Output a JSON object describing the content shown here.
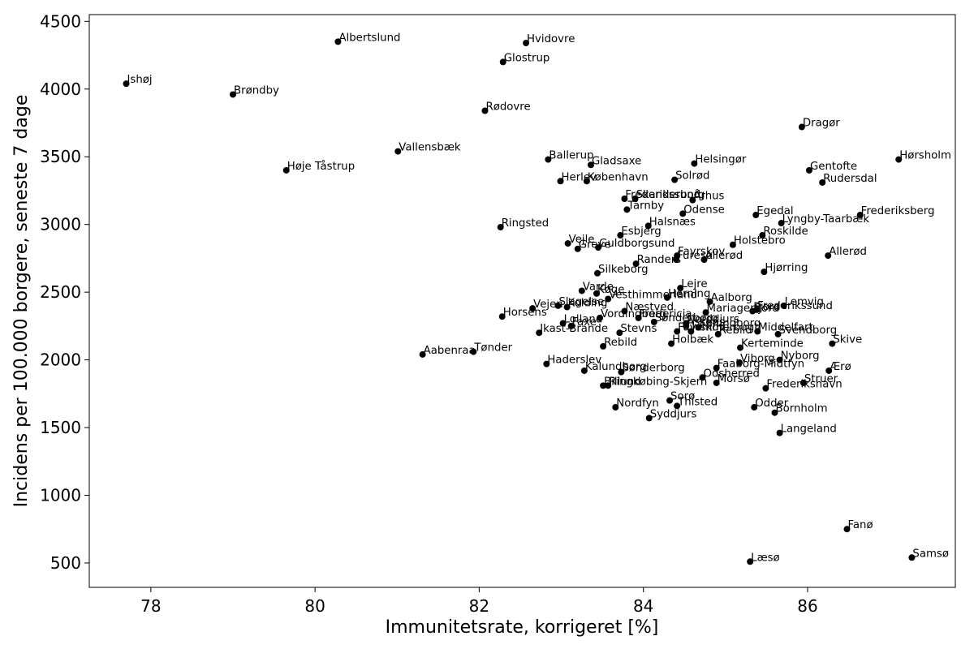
{
  "chart_data": {
    "type": "scatter",
    "title": "",
    "xlabel": "Immunitetsrate, korrigeret [%]",
    "ylabel": "Incidens per 100.000 borgere, seneste 7 dage",
    "xlim": [
      77.25,
      87.8
    ],
    "ylim": [
      320,
      4550
    ],
    "xticks": [
      78,
      80,
      82,
      84,
      86
    ],
    "yticks": [
      500,
      1000,
      1500,
      2000,
      2500,
      3000,
      3500,
      4000,
      4500
    ],
    "grid": false,
    "marker_color": "#000000",
    "points": [
      {
        "label": "Ishøj",
        "x": 77.7,
        "y": 4040
      },
      {
        "label": "Albertslund",
        "x": 80.28,
        "y": 4350
      },
      {
        "label": "Hvidovre",
        "x": 82.57,
        "y": 4340
      },
      {
        "label": "Glostrup",
        "x": 82.29,
        "y": 4200
      },
      {
        "label": "Brøndby",
        "x": 79.0,
        "y": 3960
      },
      {
        "label": "Rødovre",
        "x": 82.07,
        "y": 3840
      },
      {
        "label": "Dragør",
        "x": 85.93,
        "y": 3720
      },
      {
        "label": "Vallensbæk",
        "x": 81.01,
        "y": 3540
      },
      {
        "label": "Hørsholm",
        "x": 87.11,
        "y": 3480
      },
      {
        "label": "Ballerup",
        "x": 82.84,
        "y": 3480
      },
      {
        "label": "Høje Tåstrup",
        "x": 79.65,
        "y": 3400
      },
      {
        "label": "Gladsaxe",
        "x": 83.36,
        "y": 3440
      },
      {
        "label": "Helsingør",
        "x": 84.62,
        "y": 3450
      },
      {
        "label": "Gentofte",
        "x": 86.02,
        "y": 3400
      },
      {
        "label": "Solrød",
        "x": 84.38,
        "y": 3330
      },
      {
        "label": "Herlev",
        "x": 82.99,
        "y": 3320
      },
      {
        "label": "København",
        "x": 83.31,
        "y": 3320
      },
      {
        "label": "Rudersdal",
        "x": 86.18,
        "y": 3310
      },
      {
        "label": "Frederikssund",
        "x": 83.77,
        "y": 3190
      },
      {
        "label": "Skanderborg",
        "x": 83.9,
        "y": 3190
      },
      {
        "label": "Århus",
        "x": 84.6,
        "y": 3180
      },
      {
        "label": "Tårnby",
        "x": 83.8,
        "y": 3110
      },
      {
        "label": "Odense",
        "x": 84.48,
        "y": 3080
      },
      {
        "label": "Egedal",
        "x": 85.37,
        "y": 3070
      },
      {
        "label": "Frederiksberg",
        "x": 86.64,
        "y": 3070
      },
      {
        "label": "Lyngby-Taarbæk",
        "x": 85.68,
        "y": 3010
      },
      {
        "label": "Halsnæs",
        "x": 84.06,
        "y": 2990
      },
      {
        "label": "Ringsted",
        "x": 82.26,
        "y": 2980
      },
      {
        "label": "Esbjerg",
        "x": 83.72,
        "y": 2920
      },
      {
        "label": "Roskilde",
        "x": 85.45,
        "y": 2920
      },
      {
        "label": "Vejle",
        "x": 83.08,
        "y": 2860
      },
      {
        "label": "Holstebro",
        "x": 85.09,
        "y": 2850
      },
      {
        "label": "Guldborgsund",
        "x": 83.45,
        "y": 2830
      },
      {
        "label": "Greve",
        "x": 83.2,
        "y": 2820
      },
      {
        "label": "Fayrskov",
        "x": 84.41,
        "y": 2770
      },
      {
        "label": "Allerød",
        "x": 86.25,
        "y": 2770
      },
      {
        "label": "Furesø",
        "x": 84.4,
        "y": 2740
      },
      {
        "label": "Allerød",
        "x": 84.74,
        "y": 2740
      },
      {
        "label": "Randers",
        "x": 83.91,
        "y": 2710
      },
      {
        "label": "Hjørring",
        "x": 85.47,
        "y": 2650
      },
      {
        "label": "Silkeborg",
        "x": 83.44,
        "y": 2640
      },
      {
        "label": "Lejre",
        "x": 84.45,
        "y": 2530
      },
      {
        "label": "Varde",
        "x": 83.25,
        "y": 2510
      },
      {
        "label": "Køge",
        "x": 83.43,
        "y": 2490
      },
      {
        "label": "Herning",
        "x": 84.29,
        "y": 2460
      },
      {
        "label": "Vesthimmerland",
        "x": 83.57,
        "y": 2450
      },
      {
        "label": "Aalborg",
        "x": 84.81,
        "y": 2430
      },
      {
        "label": "Lemvig",
        "x": 85.71,
        "y": 2400
      },
      {
        "label": "Vejen",
        "x": 82.65,
        "y": 2380
      },
      {
        "label": "Slagelse",
        "x": 82.96,
        "y": 2400
      },
      {
        "label": "Kolding",
        "x": 83.07,
        "y": 2390
      },
      {
        "label": "Fjord",
        "x": 85.33,
        "y": 2360
      },
      {
        "label": "Frederikssund",
        "x": 85.38,
        "y": 2370
      },
      {
        "label": "Mariagerfjord",
        "x": 84.76,
        "y": 2350
      },
      {
        "label": "Næstved",
        "x": 83.77,
        "y": 2360
      },
      {
        "label": "Horsens",
        "x": 82.28,
        "y": 2320
      },
      {
        "label": "Vordingborg",
        "x": 83.47,
        "y": 2310
      },
      {
        "label": "Fredericia",
        "x": 83.94,
        "y": 2310
      },
      {
        "label": "Sønderborg",
        "x": 84.13,
        "y": 2280
      },
      {
        "label": "Norddjurs",
        "x": 84.52,
        "y": 2270
      },
      {
        "label": "Lolland",
        "x": 83.02,
        "y": 2270
      },
      {
        "label": "Faxe",
        "x": 83.12,
        "y": 2250
      },
      {
        "label": "Assens",
        "x": 84.52,
        "y": 2250
      },
      {
        "label": "Kalundborg",
        "x": 84.67,
        "y": 2240
      },
      {
        "label": "Jammerbugt",
        "x": 84.58,
        "y": 2210
      },
      {
        "label": "Ikast-Brande",
        "x": 82.73,
        "y": 2200
      },
      {
        "label": "Stevns",
        "x": 83.71,
        "y": 2200
      },
      {
        "label": "Favrskov",
        "x": 84.41,
        "y": 2210
      },
      {
        "label": "Rebild",
        "x": 84.91,
        "y": 2190
      },
      {
        "label": "Middelfart",
        "x": 85.39,
        "y": 2210
      },
      {
        "label": "Svendborg",
        "x": 85.64,
        "y": 2190
      },
      {
        "label": "Skive",
        "x": 86.3,
        "y": 2120
      },
      {
        "label": "Holbæk",
        "x": 84.34,
        "y": 2120
      },
      {
        "label": "Rebild",
        "x": 83.51,
        "y": 2100
      },
      {
        "label": "Kerteminde",
        "x": 85.18,
        "y": 2090
      },
      {
        "label": "Tønder",
        "x": 81.93,
        "y": 2060
      },
      {
        "label": "Aabenraa",
        "x": 81.31,
        "y": 2040
      },
      {
        "label": "Nyborg",
        "x": 85.66,
        "y": 2000
      },
      {
        "label": "Viborg",
        "x": 85.17,
        "y": 1980
      },
      {
        "label": "Haderslev",
        "x": 82.82,
        "y": 1970
      },
      {
        "label": "Faaborg-Midtfyn",
        "x": 84.89,
        "y": 1940
      },
      {
        "label": "Ærø",
        "x": 86.26,
        "y": 1920
      },
      {
        "label": "Kalundborg",
        "x": 83.28,
        "y": 1920
      },
      {
        "label": "Sønderborg",
        "x": 83.73,
        "y": 1910
      },
      {
        "label": "Odsherred",
        "x": 84.72,
        "y": 1870
      },
      {
        "label": "Morsø",
        "x": 84.89,
        "y": 1830
      },
      {
        "label": "Struer",
        "x": 85.95,
        "y": 1830
      },
      {
        "label": "Billund",
        "x": 83.51,
        "y": 1810
      },
      {
        "label": "Ringkøbing-Skjern",
        "x": 83.57,
        "y": 1810
      },
      {
        "label": "Frederikshavn",
        "x": 85.49,
        "y": 1790
      },
      {
        "label": "Sorø",
        "x": 84.32,
        "y": 1700
      },
      {
        "label": "Thisted",
        "x": 84.41,
        "y": 1660
      },
      {
        "label": "Nordfyn",
        "x": 83.66,
        "y": 1650
      },
      {
        "label": "Odder",
        "x": 85.35,
        "y": 1650
      },
      {
        "label": "Bornholm",
        "x": 85.6,
        "y": 1610
      },
      {
        "label": "Syddjurs",
        "x": 84.07,
        "y": 1570
      },
      {
        "label": "Langeland",
        "x": 85.66,
        "y": 1460
      },
      {
        "label": "Fanø",
        "x": 86.48,
        "y": 750
      },
      {
        "label": "Samsø",
        "x": 87.27,
        "y": 540
      },
      {
        "label": "Læsø",
        "x": 85.3,
        "y": 510
      }
    ]
  }
}
